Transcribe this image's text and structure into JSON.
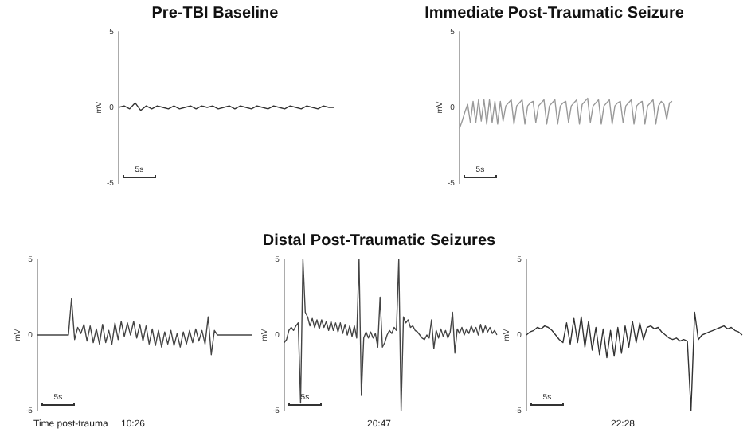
{
  "chart_data": [
    {
      "type": "line",
      "title": "Pre-TBI Baseline",
      "ylabel": "mV",
      "annotations": [
        "5s"
      ],
      "color": "#333333",
      "ylim": [
        -5,
        5
      ],
      "yticks": [
        -5,
        0,
        5
      ],
      "tick_labels": "y",
      "categories": [
        null,
        null,
        null,
        null,
        null,
        null,
        null,
        null,
        null,
        null,
        null,
        null,
        null,
        null,
        null,
        null,
        null,
        null,
        null,
        null,
        null,
        null,
        null,
        null,
        null,
        null,
        null,
        null,
        null,
        null,
        null,
        null,
        null,
        null,
        null,
        null,
        null,
        null,
        null,
        null
      ],
      "values": [
        0,
        0.1,
        -0.1,
        0.3,
        -0.2,
        0.1,
        -0.1,
        0.1,
        0,
        -0.1,
        0.1,
        -0.1,
        0,
        0.1,
        -0.1,
        0.1,
        0,
        0.1,
        -0.1,
        0,
        0.1,
        -0.1,
        0.1,
        0,
        -0.1,
        0.1,
        0,
        -0.1,
        0.1,
        0,
        -0.1,
        0.1,
        0,
        -0.1,
        0.1,
        0,
        -0.1,
        0.1,
        0,
        0
      ]
    },
    {
      "type": "line",
      "title": "Immediate Post-Traumatic Seizure",
      "ylabel": "mV",
      "annotations": [
        "5s"
      ],
      "color": "#999999",
      "ylim": [
        -5,
        5
      ],
      "yticks": [
        -5,
        0,
        5
      ],
      "tick_labels": "y",
      "categories": [
        null,
        null,
        null,
        null,
        null,
        null,
        null,
        null,
        null,
        null,
        null,
        null,
        null,
        null,
        null,
        null,
        null,
        null,
        null,
        null,
        null,
        null,
        null,
        null,
        null,
        null,
        null,
        null,
        null,
        null,
        null,
        null,
        null,
        null,
        null,
        null,
        null,
        null,
        null,
        null,
        null,
        null,
        null,
        null,
        null,
        null,
        null,
        null,
        null,
        null,
        null,
        null,
        null,
        null,
        null,
        null,
        null,
        null,
        null,
        null,
        null,
        null,
        null,
        null,
        null,
        null,
        null,
        null,
        null,
        null,
        null,
        null,
        null,
        null,
        null,
        null,
        null,
        null,
        null
      ],
      "values": [
        -1.4,
        -0.9,
        -0.3,
        0.2,
        -1.0,
        0.4,
        -1.0,
        0.5,
        -0.9,
        0.5,
        -1.1,
        0.5,
        -1.0,
        0.4,
        -1.1,
        0.4,
        -0.9,
        0.1,
        0.3,
        0.5,
        -1.1,
        0.1,
        0.3,
        0.5,
        -1.1,
        0.1,
        0.3,
        0.4,
        -1.0,
        0.1,
        0.3,
        0.5,
        -1.1,
        0.1,
        0.3,
        0.5,
        -1.1,
        0.1,
        0.3,
        0.4,
        -1.0,
        0.1,
        0.3,
        0.5,
        -1.1,
        0.2,
        0.4,
        0.6,
        -1.0,
        0.1,
        0.3,
        0.5,
        -1.1,
        0.1,
        0.3,
        0.5,
        -1.1,
        0.1,
        0.3,
        0.4,
        -1.0,
        0.1,
        0.3,
        0.5,
        -1.1,
        0.1,
        0.3,
        0.4,
        -1.1,
        0.1,
        0.3,
        0.5,
        -1.1,
        0.1,
        0.4,
        0.2,
        -0.8,
        0.3,
        0.4
      ]
    },
    {
      "type": "line",
      "xlabel": "10:26",
      "ylabel": "mV",
      "annotations": [
        "5s",
        "Time post-trauma"
      ],
      "color": "#444444",
      "ylim": [
        -5,
        5
      ],
      "yticks": [
        -5,
        0,
        5
      ],
      "tick_labels": "y",
      "categories": [
        null,
        null,
        null,
        null,
        null,
        null,
        null,
        null,
        null,
        null,
        null,
        null,
        null,
        null,
        null,
        null,
        null,
        null,
        null,
        null,
        null,
        null,
        null,
        null,
        null,
        null,
        null,
        null,
        null,
        null,
        null,
        null,
        null,
        null,
        null,
        null,
        null,
        null,
        null,
        null,
        null,
        null,
        null,
        null,
        null,
        null,
        null,
        null,
        null,
        null,
        null,
        null,
        null,
        null,
        null,
        null,
        null,
        null,
        null,
        null,
        null,
        null,
        null,
        null,
        null,
        null,
        null,
        null,
        null,
        null
      ],
      "values": [
        0,
        0,
        0,
        0,
        0,
        0,
        0,
        0,
        0,
        0,
        0,
        2.4,
        -0.3,
        0.5,
        0.1,
        0.7,
        -0.4,
        0.6,
        -0.5,
        0.4,
        -0.6,
        0.7,
        -0.5,
        0.3,
        -0.6,
        0.8,
        -0.3,
        0.9,
        -0.1,
        0.8,
        0,
        0.9,
        -0.2,
        0.7,
        -0.4,
        0.6,
        -0.6,
        0.4,
        -0.7,
        0.3,
        -0.8,
        0.2,
        -0.6,
        0.3,
        -0.7,
        0.1,
        -0.8,
        0.2,
        -0.6,
        0.3,
        -0.5,
        0.4,
        -0.4,
        0.3,
        -0.6,
        1.2,
        -1.3,
        0.3,
        0,
        0,
        0,
        0,
        0,
        0,
        0,
        0,
        0,
        0,
        0,
        0
      ]
    },
    {
      "type": "line",
      "title": "Distal Post-Traumatic Seizures",
      "xlabel": "20:47",
      "ylabel": "mV",
      "annotations": [
        "5s"
      ],
      "color": "#444444",
      "ylim": [
        -5,
        5
      ],
      "yticks": [
        -5,
        0,
        5
      ],
      "tick_labels": "y",
      "categories": [
        null,
        null,
        null,
        null,
        null,
        null,
        null,
        null,
        null,
        null,
        null,
        null,
        null,
        null,
        null,
        null,
        null,
        null,
        null,
        null,
        null,
        null,
        null,
        null,
        null,
        null,
        null,
        null,
        null,
        null,
        null,
        null,
        null,
        null,
        null,
        null,
        null,
        null,
        null,
        null,
        null,
        null,
        null,
        null,
        null,
        null,
        null,
        null,
        null,
        null,
        null,
        null,
        null,
        null,
        null,
        null,
        null,
        null,
        null,
        null,
        null,
        null,
        null,
        null,
        null,
        null,
        null,
        null,
        null,
        null,
        null,
        null,
        null,
        null,
        null,
        null,
        null,
        null,
        null,
        null,
        null,
        null,
        null,
        null,
        null,
        null,
        null,
        null,
        null,
        null,
        null,
        null
      ],
      "values": [
        -0.5,
        -0.3,
        0.3,
        0.5,
        0.3,
        0.6,
        0.8,
        -4.5,
        5.0,
        1.5,
        1.2,
        0.6,
        1.1,
        0.5,
        1.0,
        0.4,
        1.0,
        0.5,
        0.9,
        0.3,
        0.9,
        0.3,
        0.8,
        0.2,
        0.8,
        0.1,
        0.7,
        0,
        0.6,
        -0.1,
        0.6,
        -0.2,
        5.0,
        -4.0,
        -0.2,
        0.2,
        -0.2,
        0.2,
        -0.2,
        0.1,
        -0.8,
        2.5,
        -0.8,
        -0.5,
        0,
        0.3,
        0.1,
        0.5,
        0.3,
        5.0,
        -5.0,
        1.2,
        0.8,
        1.0,
        0.5,
        0.6,
        0.3,
        0.2,
        0,
        -0.2,
        -0.3,
        0,
        -0.2,
        1.0,
        -0.9,
        0.3,
        -0.2,
        0.4,
        -0.1,
        0.3,
        -0.2,
        0.2,
        1.5,
        -1.2,
        0.4,
        0.1,
        0.5,
        0,
        0.4,
        0.1,
        0.6,
        0.2,
        0.5,
        0,
        0.7,
        0.1,
        0.6,
        0.2,
        0.5,
        0.1,
        0.3,
        0
      ]
    },
    {
      "type": "line",
      "xlabel": "22:28",
      "ylabel": "mV",
      "annotations": [
        "5s"
      ],
      "color": "#333333",
      "ylim": [
        -5,
        5
      ],
      "yticks": [
        -5,
        0,
        5
      ],
      "tick_labels": "y",
      "categories": [
        null,
        null,
        null,
        null,
        null,
        null,
        null,
        null,
        null,
        null,
        null,
        null,
        null,
        null,
        null,
        null,
        null,
        null,
        null,
        null,
        null,
        null,
        null,
        null,
        null,
        null,
        null,
        null,
        null,
        null,
        null,
        null,
        null,
        null,
        null,
        null,
        null,
        null,
        null,
        null,
        null,
        null,
        null,
        null,
        null,
        null,
        null,
        null,
        null,
        null,
        null,
        null,
        null,
        null,
        null,
        null,
        null,
        null,
        null,
        null
      ],
      "values": [
        0,
        0.2,
        0.3,
        0.5,
        0.4,
        0.6,
        0.5,
        0.3,
        0,
        -0.3,
        -0.5,
        0.8,
        -0.6,
        1.1,
        -0.5,
        1.2,
        -0.8,
        0.9,
        -1.0,
        0.5,
        -1.3,
        0.4,
        -1.5,
        0.3,
        -1.4,
        0.5,
        -1.2,
        0.6,
        -0.8,
        0.9,
        -0.5,
        0.8,
        -0.3,
        0.5,
        0.6,
        0.4,
        0.5,
        0.2,
        0,
        -0.2,
        -0.3,
        -0.2,
        -0.4,
        -0.3,
        -0.4,
        -5.0,
        1.5,
        -0.3,
        0,
        0.1,
        0.2,
        0.3,
        0.4,
        0.5,
        0.6,
        0.4,
        0.5,
        0.3,
        0.2,
        0
      ]
    }
  ]
}
